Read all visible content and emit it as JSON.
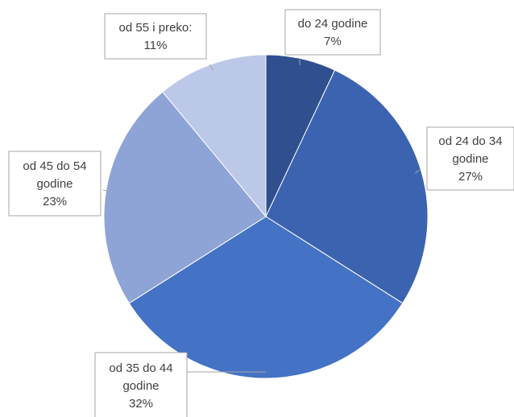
{
  "chart_data": {
    "type": "pie",
    "title": "",
    "start_angle_deg": 0,
    "direction": "clockwise",
    "slices": [
      {
        "label": "do 24 godine",
        "value": 7,
        "value_label": "7%",
        "color": "#2f4f8f",
        "label_lines": [
          "do 24 godine",
          "7%"
        ]
      },
      {
        "label": "od 24 do 34 godine",
        "value": 27,
        "value_label": "27%",
        "color": "#3b63b0",
        "label_lines": [
          "od 24 do 34",
          "godine",
          "27%"
        ]
      },
      {
        "label": "od 35 do 44 godine",
        "value": 32,
        "value_label": "32%",
        "color": "#4472c4",
        "label_lines": [
          "od 35 do 44",
          "godine",
          "32%"
        ]
      },
      {
        "label": "od 45 do 54 godine",
        "value": 23,
        "value_label": "23%",
        "color": "#8fa4d6",
        "label_lines": [
          "od 45 do 54",
          "godine",
          "23%"
        ]
      },
      {
        "label": "od 55 i preko:",
        "value": 11,
        "value_label": "11%",
        "color": "#bcc8e8",
        "label_lines": [
          "od 55 i preko:",
          "11%"
        ]
      }
    ],
    "legend": "none"
  }
}
